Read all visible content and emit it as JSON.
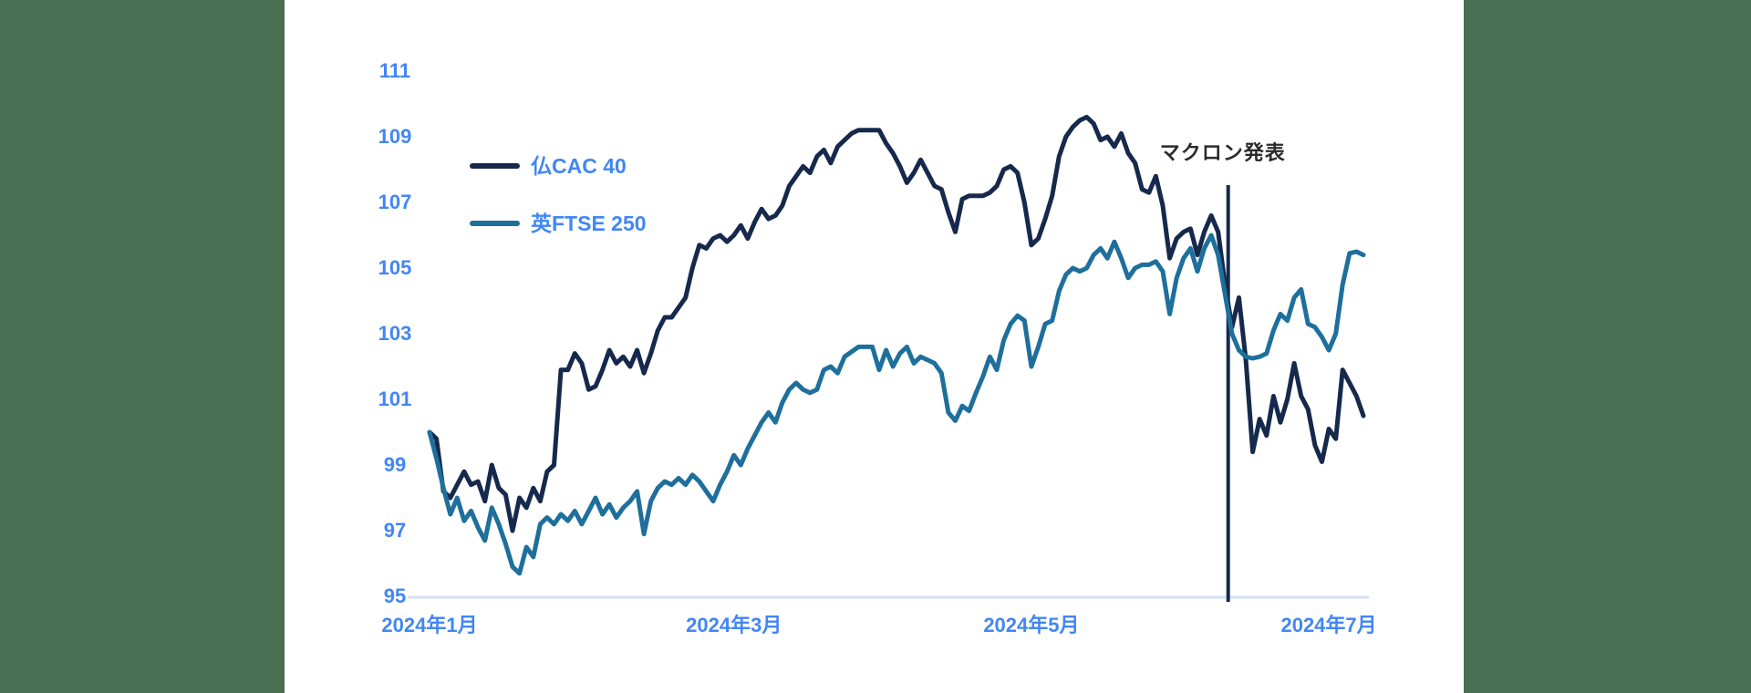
{
  "colors": {
    "background": "#ffffff",
    "side_strip": "#4a6f52",
    "axis_label_blue": "#4286f5",
    "baseline": "#d7e2f4",
    "annotation_text": "#2b2b2b",
    "event_line": "#16294d",
    "cac40_line": "#16294d",
    "ftse250_line": "#1e6f9c"
  },
  "chart_data": {
    "type": "line",
    "title": "",
    "xlabel": "",
    "ylabel": "",
    "grid": false,
    "legend_position": "inside top-left",
    "ylim": [
      95,
      111.8
    ],
    "y_ticks": [
      "111",
      "109",
      "107",
      "105",
      "103",
      "101",
      "99",
      "97",
      "95"
    ],
    "y_tick_values": [
      111,
      109,
      107,
      105,
      103,
      101,
      99,
      97,
      95
    ],
    "x_tick_labels": [
      {
        "label": "2024年1月",
        "index": 0
      },
      {
        "label": "2024年3月",
        "index": 44
      },
      {
        "label": "2024年5月",
        "index": 87
      },
      {
        "label": "2024年7月",
        "index": 130
      }
    ],
    "annotation": {
      "label": "マクロン発表",
      "x_index": 115.45
    },
    "series": [
      {
        "name": "仏CAC 40",
        "color": "#16294d",
        "values": [
          100.0,
          99.8,
          98.2,
          98.0,
          98.4,
          98.8,
          98.4,
          98.5,
          97.9,
          99.0,
          98.3,
          98.1,
          97.0,
          98.0,
          97.7,
          98.3,
          97.9,
          98.8,
          99.0,
          101.9,
          101.9,
          102.4,
          102.1,
          101.3,
          101.4,
          101.9,
          102.5,
          102.1,
          102.3,
          102.0,
          102.5,
          101.8,
          102.4,
          103.1,
          103.5,
          103.5,
          103.8,
          104.1,
          105.0,
          105.7,
          105.6,
          105.9,
          106.0,
          105.8,
          106.0,
          106.3,
          105.9,
          106.4,
          106.8,
          106.5,
          106.6,
          106.9,
          107.5,
          107.8,
          108.1,
          107.9,
          108.4,
          108.6,
          108.2,
          108.7,
          108.9,
          109.1,
          109.2,
          109.2,
          109.2,
          109.2,
          108.8,
          108.5,
          108.1,
          107.6,
          107.9,
          108.3,
          107.9,
          107.5,
          107.4,
          106.7,
          106.1,
          107.1,
          107.2,
          107.2,
          107.2,
          107.3,
          107.5,
          108.0,
          108.1,
          107.9,
          107.0,
          105.7,
          105.9,
          106.5,
          107.2,
          108.4,
          109.0,
          109.3,
          109.5,
          109.6,
          109.4,
          108.9,
          109.0,
          108.7,
          109.1,
          108.5,
          108.2,
          107.4,
          107.3,
          107.8,
          106.9,
          105.3,
          105.9,
          106.1,
          106.2,
          105.4,
          106.1,
          106.6,
          106.1,
          104.5,
          103.2,
          104.1,
          102.2,
          99.4,
          100.4,
          99.9,
          101.1,
          100.3,
          101.0,
          102.1,
          101.1,
          100.7,
          99.6,
          99.1,
          100.1,
          99.8,
          101.9,
          101.5,
          101.1,
          100.5
        ]
      },
      {
        "name": "英FTSE 250",
        "color": "#1e6f9c",
        "values": [
          100.0,
          99.2,
          98.3,
          97.5,
          98.0,
          97.3,
          97.6,
          97.1,
          96.7,
          97.7,
          97.2,
          96.6,
          95.9,
          95.7,
          96.5,
          96.2,
          97.2,
          97.4,
          97.2,
          97.5,
          97.3,
          97.6,
          97.2,
          97.6,
          98.0,
          97.5,
          97.8,
          97.4,
          97.7,
          97.9,
          98.2,
          96.9,
          97.9,
          98.3,
          98.5,
          98.4,
          98.6,
          98.4,
          98.7,
          98.5,
          98.2,
          97.9,
          98.4,
          98.8,
          99.3,
          99.0,
          99.5,
          99.9,
          100.3,
          100.6,
          100.3,
          100.9,
          101.3,
          101.5,
          101.3,
          101.2,
          101.3,
          101.9,
          102.0,
          101.8,
          102.3,
          102.45,
          102.6,
          102.6,
          102.6,
          101.9,
          102.5,
          102.0,
          102.4,
          102.6,
          102.1,
          102.3,
          102.2,
          102.1,
          101.8,
          100.6,
          100.35,
          100.8,
          100.65,
          101.2,
          101.7,
          102.3,
          101.9,
          102.8,
          103.3,
          103.55,
          103.4,
          102.0,
          102.6,
          103.3,
          103.4,
          104.3,
          104.8,
          105.0,
          104.9,
          105.0,
          105.4,
          105.6,
          105.3,
          105.8,
          105.3,
          104.7,
          105.0,
          105.1,
          105.1,
          105.2,
          104.9,
          103.6,
          104.7,
          105.3,
          105.6,
          104.9,
          105.6,
          106.0,
          105.4,
          104.2,
          103.0,
          102.5,
          102.3,
          102.25,
          102.3,
          102.4,
          103.1,
          103.6,
          103.4,
          104.1,
          104.35,
          103.3,
          103.2,
          102.9,
          102.5,
          103.0,
          104.5,
          105.45,
          105.5,
          105.4
        ]
      }
    ]
  }
}
